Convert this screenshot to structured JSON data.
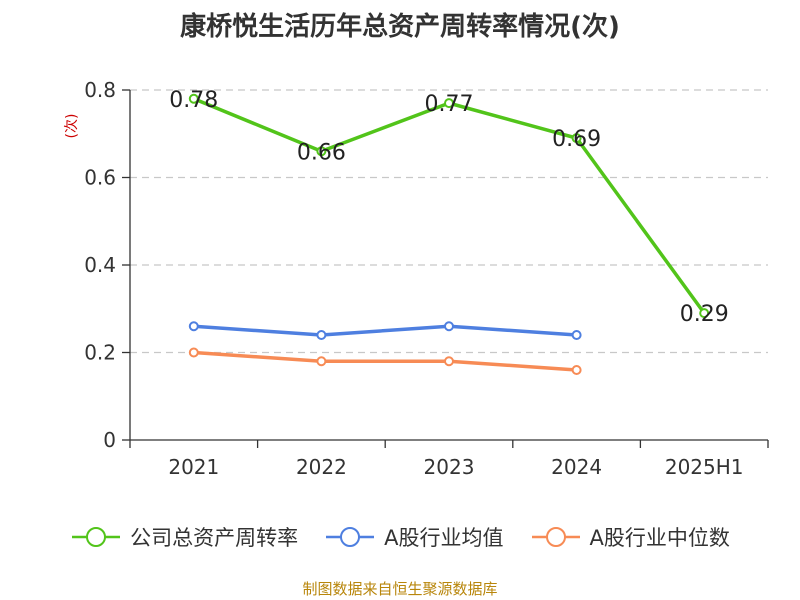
{
  "chart_data": {
    "type": "line",
    "title": "康桥悦生活历年总资产周转率情况(次)",
    "ylabel": "(次)",
    "xlabel": "",
    "categories": [
      "2021",
      "2022",
      "2023",
      "2024",
      "2025H1"
    ],
    "ylim": [
      0,
      0.8
    ],
    "yticks": [
      0,
      0.2,
      0.4,
      0.6,
      0.8
    ],
    "ytick_labels": [
      "0",
      "0.2",
      "0.4",
      "0.6",
      "0.8"
    ],
    "grid": true,
    "legend_position": "bottom",
    "series": [
      {
        "name": "公司总资产周转率",
        "color": "#52c41a",
        "values": [
          0.78,
          0.66,
          0.77,
          0.69,
          0.29
        ],
        "labels": [
          "0.78",
          "0.66",
          "0.77",
          "0.69",
          "0.29"
        ],
        "show_labels": true
      },
      {
        "name": "A股行业均值",
        "color": "#4e7fe0",
        "values": [
          0.26,
          0.24,
          0.26,
          0.24,
          null
        ],
        "show_labels": false
      },
      {
        "name": "A股行业中位数",
        "color": "#f78b55",
        "values": [
          0.2,
          0.18,
          0.18,
          0.16,
          null
        ],
        "show_labels": false
      }
    ],
    "source": "制图数据来自恒生聚源数据库"
  }
}
